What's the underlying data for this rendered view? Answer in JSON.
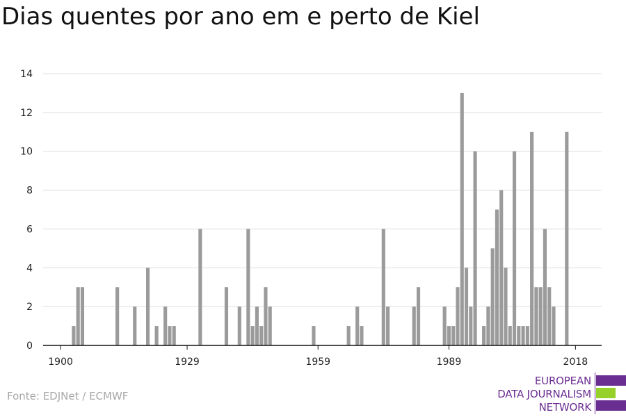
{
  "title": "Dias quentes por ano em e perto de Kiel",
  "source": "Fonte: EDJNet / ECMWF",
  "logo": {
    "line1": "EUROPEAN",
    "line2": "DATA JOURNALISM",
    "line3": "NETWORK",
    "colors": {
      "text": "#6a2d91",
      "bar1": "#6a2d91",
      "bar2": "#95d12a",
      "bar3": "#6a2d91"
    }
  },
  "colors": {
    "bar": "#9b9b9b",
    "grid": "#dddddd",
    "axis": "#111111"
  },
  "chart_data": {
    "type": "bar",
    "xlabel": "",
    "ylabel": "",
    "ylim": [
      0,
      14
    ],
    "y_ticks": [
      0,
      2,
      4,
      6,
      8,
      10,
      12,
      14
    ],
    "x_ticks": [
      1900,
      1929,
      1959,
      1989,
      2018
    ],
    "x_range": [
      1896,
      2024
    ],
    "grid": true,
    "legend": "none",
    "series": [
      {
        "x": [
          1903,
          1904,
          1905,
          1913,
          1917,
          1920,
          1922,
          1924,
          1925,
          1926,
          1932,
          1938,
          1941,
          1943,
          1944,
          1945,
          1946,
          1947,
          1948,
          1958,
          1966,
          1968,
          1969,
          1974,
          1975,
          1981,
          1982,
          1988,
          1989,
          1990,
          1991,
          1992,
          1993,
          1994,
          1995,
          1997,
          1998,
          1999,
          2000,
          2001,
          2002,
          2003,
          2004,
          2005,
          2006,
          2007,
          2008,
          2009,
          2010,
          2011,
          2012,
          2013,
          2014,
          2016
        ],
        "values": [
          1,
          3,
          3,
          3,
          2,
          4,
          1,
          2,
          1,
          1,
          6,
          3,
          2,
          6,
          1,
          2,
          1,
          3,
          2,
          1,
          1,
          2,
          1,
          6,
          2,
          2,
          3,
          2,
          1,
          1,
          3,
          13,
          4,
          2,
          10,
          1,
          2,
          5,
          7,
          8,
          4,
          1,
          10,
          1,
          1,
          1,
          11,
          3,
          3,
          6,
          3,
          2,
          0,
          11
        ]
      }
    ]
  }
}
